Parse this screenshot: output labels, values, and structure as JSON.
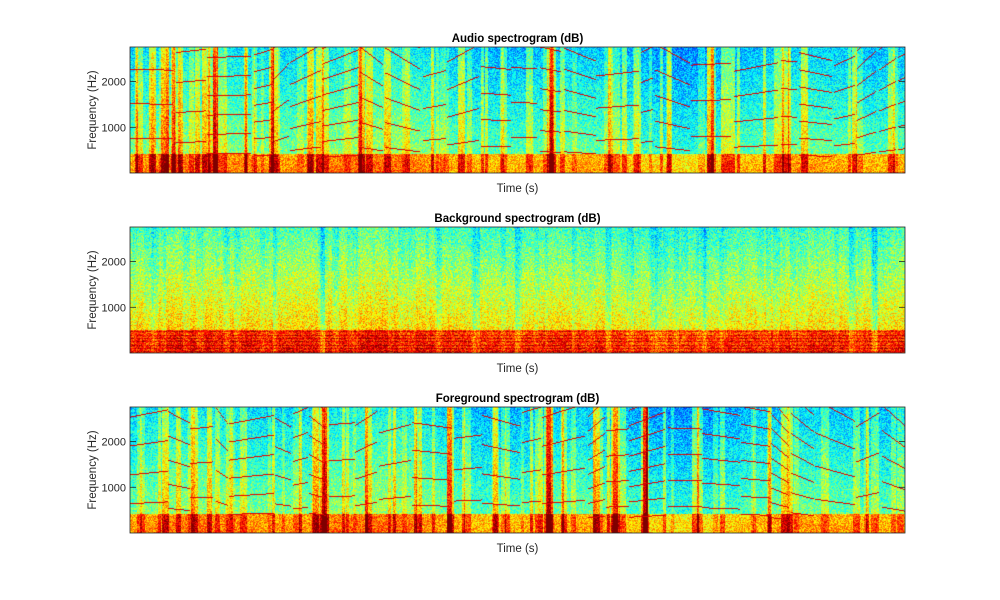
{
  "figure": {
    "background": "#ffffff",
    "colormap": [
      "#00007f",
      "#0000ff",
      "#00ffff",
      "#ffff00",
      "#ff0000",
      "#7f0000"
    ]
  },
  "chart_data": [
    {
      "type": "heatmap",
      "key": "audio",
      "title": "Audio spectrogram (dB)",
      "xlabel": "Time (s)",
      "ylabel": "Frequency (Hz)",
      "ylim": [
        0,
        2756
      ],
      "yticks": [
        1000,
        2000
      ],
      "ytick_labels": [
        "1000",
        "2000"
      ],
      "xticks": [],
      "legend": "none",
      "seed": 17
    },
    {
      "type": "heatmap",
      "key": "background",
      "title": "Background spectrogram (dB)",
      "xlabel": "Time (s)",
      "ylabel": "Frequency (Hz)",
      "ylim": [
        0,
        2756
      ],
      "yticks": [
        1000,
        2000
      ],
      "ytick_labels": [
        "1000",
        "2000"
      ],
      "xticks": [],
      "legend": "none",
      "seed": 29
    },
    {
      "type": "heatmap",
      "key": "foreground",
      "title": "Foreground spectrogram (dB)",
      "xlabel": "Time (s)",
      "ylabel": "Frequency (Hz)",
      "ylim": [
        0,
        2756
      ],
      "yticks": [
        1000,
        2000
      ],
      "ytick_labels": [
        "1000",
        "2000"
      ],
      "xticks": [],
      "legend": "none",
      "seed": 41
    }
  ]
}
